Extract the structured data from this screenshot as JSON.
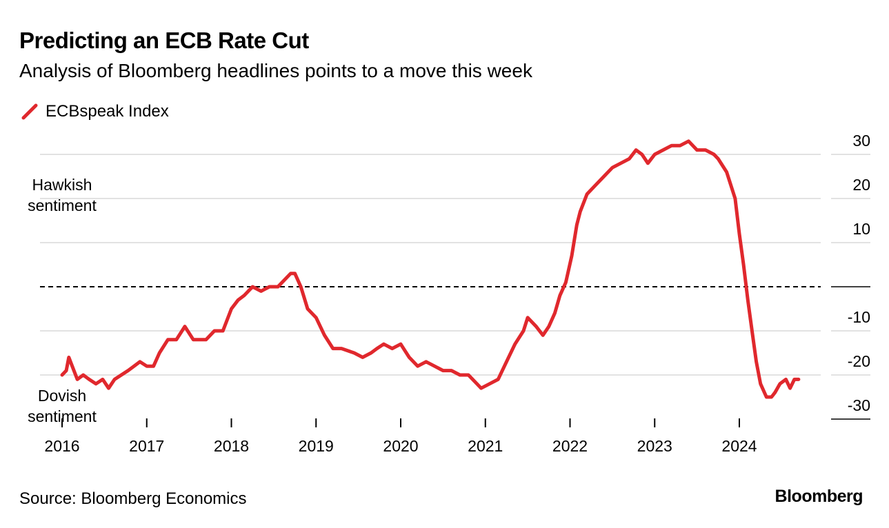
{
  "header": {
    "title": "Predicting an ECB Rate Cut",
    "subtitle": "Analysis of Bloomberg headlines points to a move this week"
  },
  "legend": {
    "label": "ECBspeak Index",
    "icon": "red-slash-icon"
  },
  "footer": {
    "source": "Source: Bloomberg Economics",
    "brand": "Bloomberg"
  },
  "colors": {
    "series": "#e0282d",
    "grid": "#d9d9d9",
    "zero_line": "#000000"
  },
  "chart_data": {
    "type": "line",
    "title": "Predicting an ECB Rate Cut",
    "subtitle": "Analysis of Bloomberg headlines points to a move this week",
    "xlabel": "",
    "ylabel": "",
    "xlim": [
      2016.0,
      2025.0
    ],
    "ylim": [
      -30,
      30
    ],
    "y_ticks": [
      30,
      20,
      10,
      0,
      -10,
      -20,
      -30
    ],
    "y_tick_labels": [
      "30",
      "20",
      "10",
      "0",
      "-10",
      "-20",
      "-30"
    ],
    "x_ticks": [
      2016,
      2017,
      2018,
      2019,
      2020,
      2021,
      2022,
      2023,
      2024
    ],
    "x_tick_labels": [
      "2016",
      "2017",
      "2018",
      "2019",
      "2020",
      "2021",
      "2022",
      "2023",
      "2024"
    ],
    "reference_line": {
      "y": 0,
      "style": "dashed"
    },
    "annotations": [
      {
        "text": [
          "Hawkish",
          "sentiment"
        ],
        "position": "upper-left"
      },
      {
        "text": [
          "Dovish",
          "sentiment"
        ],
        "position": "lower-left"
      }
    ],
    "legend_position": "top-left",
    "grid": true,
    "series": [
      {
        "name": "ECBspeak Index",
        "x": [
          2016.0,
          2016.05,
          2016.08,
          2016.12,
          2016.18,
          2016.25,
          2016.32,
          2016.4,
          2016.48,
          2016.55,
          2016.62,
          2016.7,
          2016.78,
          2016.85,
          2016.92,
          2017.0,
          2017.08,
          2017.15,
          2017.25,
          2017.35,
          2017.45,
          2017.55,
          2017.62,
          2017.7,
          2017.8,
          2017.9,
          2018.0,
          2018.08,
          2018.15,
          2018.25,
          2018.35,
          2018.45,
          2018.55,
          2018.6,
          2018.7,
          2018.75,
          2018.82,
          2018.9,
          2019.0,
          2019.1,
          2019.2,
          2019.3,
          2019.45,
          2019.55,
          2019.65,
          2019.72,
          2019.8,
          2019.9,
          2020.0,
          2020.1,
          2020.2,
          2020.3,
          2020.4,
          2020.5,
          2020.6,
          2020.7,
          2020.8,
          2020.9,
          2020.95,
          2021.05,
          2021.15,
          2021.25,
          2021.35,
          2021.45,
          2021.5,
          2021.55,
          2021.6,
          2021.68,
          2021.75,
          2021.82,
          2021.88,
          2021.95,
          2022.02,
          2022.08,
          2022.12,
          2022.2,
          2022.3,
          2022.4,
          2022.5,
          2022.6,
          2022.7,
          2022.78,
          2022.85,
          2022.92,
          2023.0,
          2023.1,
          2023.2,
          2023.3,
          2023.4,
          2023.45,
          2023.5,
          2023.6,
          2023.7,
          2023.75,
          2023.85,
          2023.95,
          2024.0,
          2024.05,
          2024.1,
          2024.15,
          2024.2,
          2024.25,
          2024.32,
          2024.38,
          2024.42,
          2024.48,
          2024.55,
          2024.6,
          2024.65,
          2024.7
        ],
        "y": [
          -20,
          -19,
          -16,
          -18,
          -21,
          -20,
          -21,
          -22,
          -21,
          -23,
          -21,
          -20,
          -19,
          -18,
          -17,
          -18,
          -18,
          -15,
          -12,
          -12,
          -9,
          -12,
          -12,
          -12,
          -10,
          -10,
          -5,
          -3,
          -2,
          0,
          -1,
          0,
          0,
          1,
          3,
          3,
          0,
          -5,
          -7,
          -11,
          -14,
          -14,
          -15,
          -16,
          -15,
          -14,
          -13,
          -14,
          -13,
          -16,
          -18,
          -17,
          -18,
          -19,
          -19,
          -20,
          -20,
          -22,
          -23,
          -22,
          -21,
          -17,
          -13,
          -10,
          -7,
          -8,
          -9,
          -11,
          -9,
          -6,
          -2,
          1,
          7,
          14,
          17,
          21,
          23,
          25,
          27,
          28,
          29,
          31,
          30,
          28,
          30,
          31,
          32,
          32,
          33,
          32,
          31,
          31,
          30,
          29,
          26,
          20,
          12,
          5,
          -3,
          -10,
          -17,
          -22,
          -25,
          -25,
          -24,
          -22,
          -21,
          -23,
          -21,
          -21
        ]
      }
    ]
  }
}
